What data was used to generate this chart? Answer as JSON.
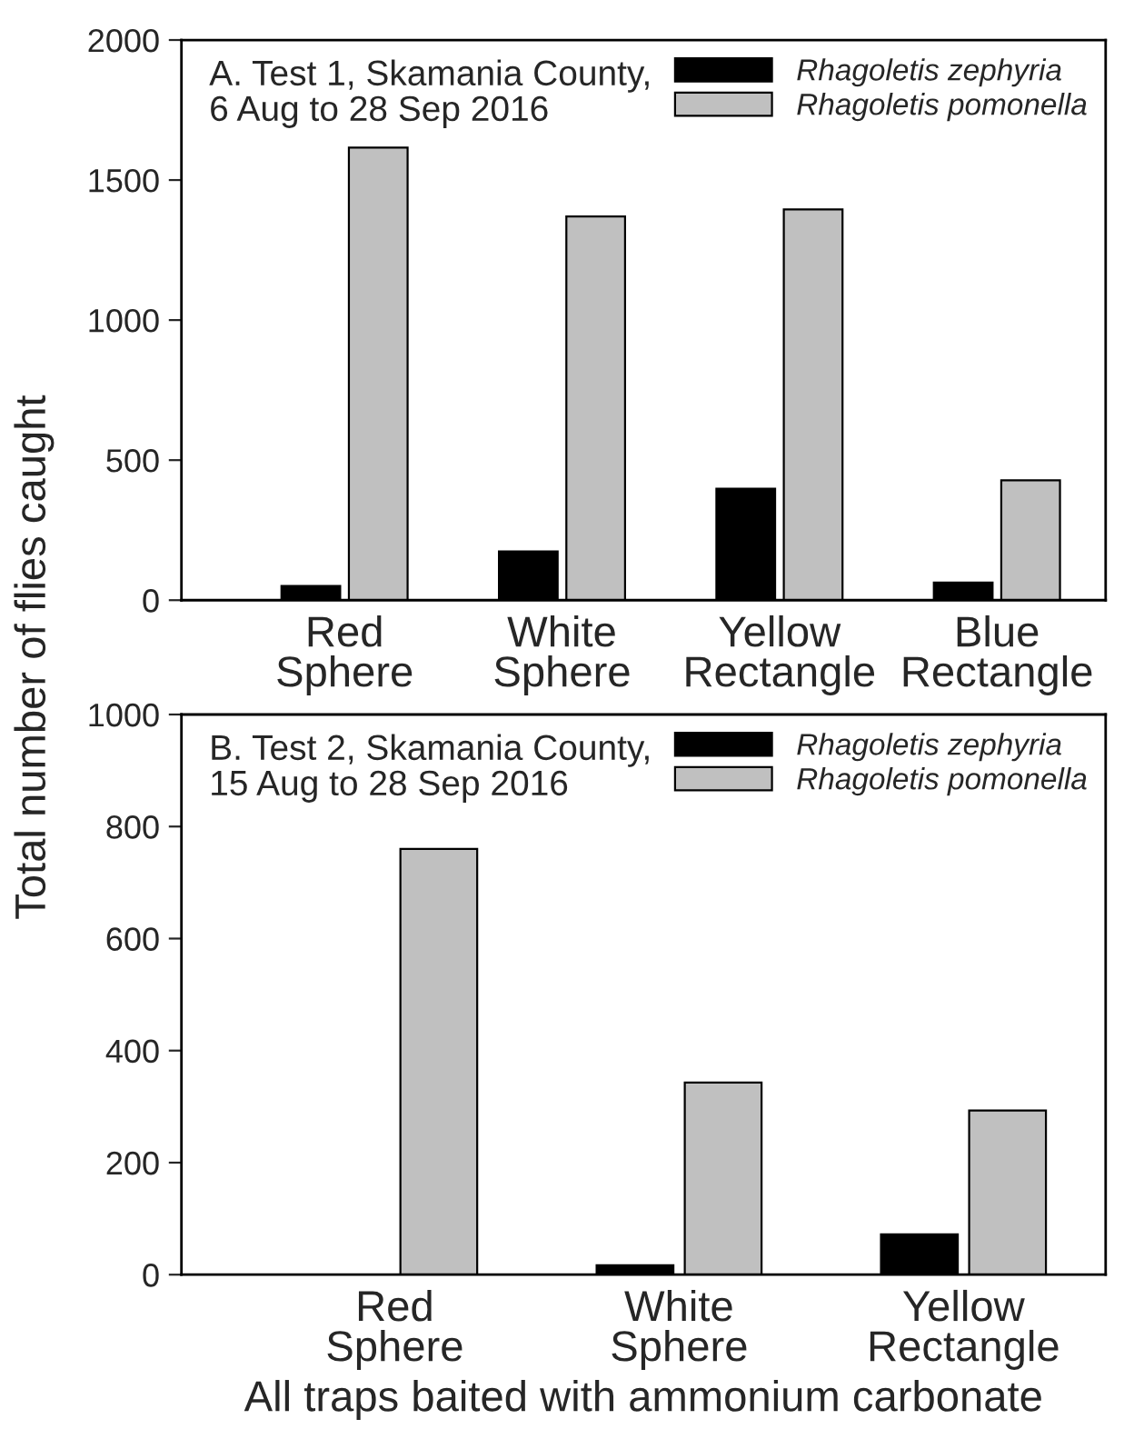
{
  "chart_data": [
    {
      "type": "bar",
      "title": "A. Test 1, Skamania County,\n6 Aug to 28 Sep 2016",
      "ylabel": "Total number of flies caught",
      "categories": [
        "Red\nSphere",
        "White\nSphere",
        "Yellow\nRectangle",
        "Blue\nRectangle"
      ],
      "series": [
        {
          "name": "Rhagoletis zephyria",
          "color": "#000000",
          "values": [
            51,
            174,
            398,
            63
          ]
        },
        {
          "name": "Rhagoletis pomonella",
          "color": "#c0c0c0",
          "values": [
            1616,
            1370,
            1395,
            428
          ]
        }
      ],
      "ylim": [
        0,
        2000
      ],
      "yticks": [
        0,
        500,
        1000,
        1500,
        2000
      ],
      "grid": false,
      "legend": "top right"
    },
    {
      "type": "bar",
      "title": "B. Test 2, Skamania County,\n15 Aug to 28 Sep 2016",
      "xlabel": "All traps baited with ammonium carbonate",
      "categories": [
        "Red\nSphere",
        "White\nSphere",
        "Yellow\nRectangle"
      ],
      "series": [
        {
          "name": "Rhagoletis zephyria",
          "color": "#000000",
          "values": [
            0,
            17,
            72
          ]
        },
        {
          "name": "Rhagoletis pomonella",
          "color": "#c0c0c0",
          "values": [
            760,
            343,
            293
          ]
        }
      ],
      "ylim": [
        0,
        1000
      ],
      "yticks": [
        0,
        200,
        400,
        600,
        800,
        1000
      ],
      "grid": false,
      "legend": "top right"
    }
  ]
}
